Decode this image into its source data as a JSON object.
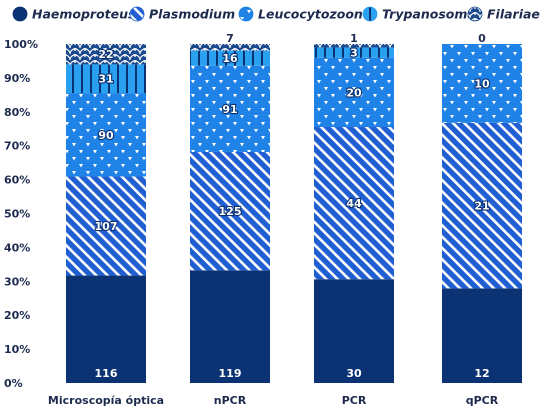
{
  "chart_data": {
    "type": "bar",
    "stacked": "percent",
    "categories": [
      "Microscopía óptica",
      "nPCR",
      "PCR",
      "qPCR"
    ],
    "series": [
      {
        "name": "Haemoproteus",
        "values": [
          116,
          119,
          30,
          12
        ],
        "color": "#0b3272",
        "pattern": "solid"
      },
      {
        "name": "Plasmodium",
        "values": [
          107,
          125,
          44,
          21
        ],
        "color": "#1f5fd1",
        "pattern": "diagonal-stripes"
      },
      {
        "name": "Leucocytozoon",
        "values": [
          90,
          91,
          20,
          10
        ],
        "color": "#1e82e6",
        "pattern": "triangles"
      },
      {
        "name": "Trypanosoma",
        "values": [
          31,
          16,
          3,
          null
        ],
        "color": "#2aa0f0",
        "pattern": "vertical-stripes"
      },
      {
        "name": "Filariae",
        "values": [
          22,
          7,
          1,
          0
        ],
        "color": "#1c4a8e",
        "pattern": "scales"
      }
    ],
    "yticks": [
      "0%",
      "10%",
      "20%",
      "30%",
      "40%",
      "50%",
      "60%",
      "70%",
      "80%",
      "90%",
      "100%"
    ],
    "ylim": [
      0,
      100
    ],
    "legend_position": "top",
    "grid": false
  }
}
